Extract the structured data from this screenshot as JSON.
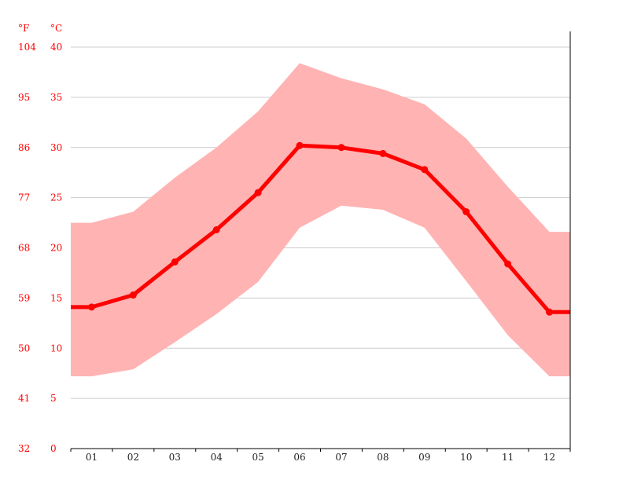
{
  "chart_data": {
    "type": "line",
    "categories": [
      "01",
      "02",
      "03",
      "04",
      "05",
      "06",
      "07",
      "08",
      "09",
      "10",
      "11",
      "12"
    ],
    "unit_f": "°F",
    "unit_c": "°C",
    "y_ticks_c": [
      "0",
      "5",
      "10",
      "15",
      "20",
      "25",
      "30",
      "35",
      "40"
    ],
    "y_ticks_f": [
      "32",
      "41",
      "50",
      "59",
      "68",
      "77",
      "86",
      "95",
      "104"
    ],
    "ylim": [
      0,
      40
    ],
    "grid": true,
    "series": [
      {
        "values": [
          14.1,
          15.3,
          18.6,
          21.8,
          25.5,
          30.2,
          30.0,
          29.4,
          27.8,
          23.6,
          18.4,
          13.6
        ]
      }
    ],
    "band": {
      "max": [
        22.5,
        23.6,
        27.0,
        30.0,
        33.6,
        38.4,
        36.9,
        35.8,
        34.3,
        30.9,
        26.1,
        21.6
      ],
      "min": [
        7.2,
        7.9,
        10.6,
        13.4,
        16.6,
        22.0,
        24.2,
        23.8,
        22.0,
        16.7,
        11.3,
        7.2
      ]
    },
    "colors": {
      "line": "#ff0000",
      "band": "#ffb3b3",
      "ticks": "#ff0000"
    }
  }
}
